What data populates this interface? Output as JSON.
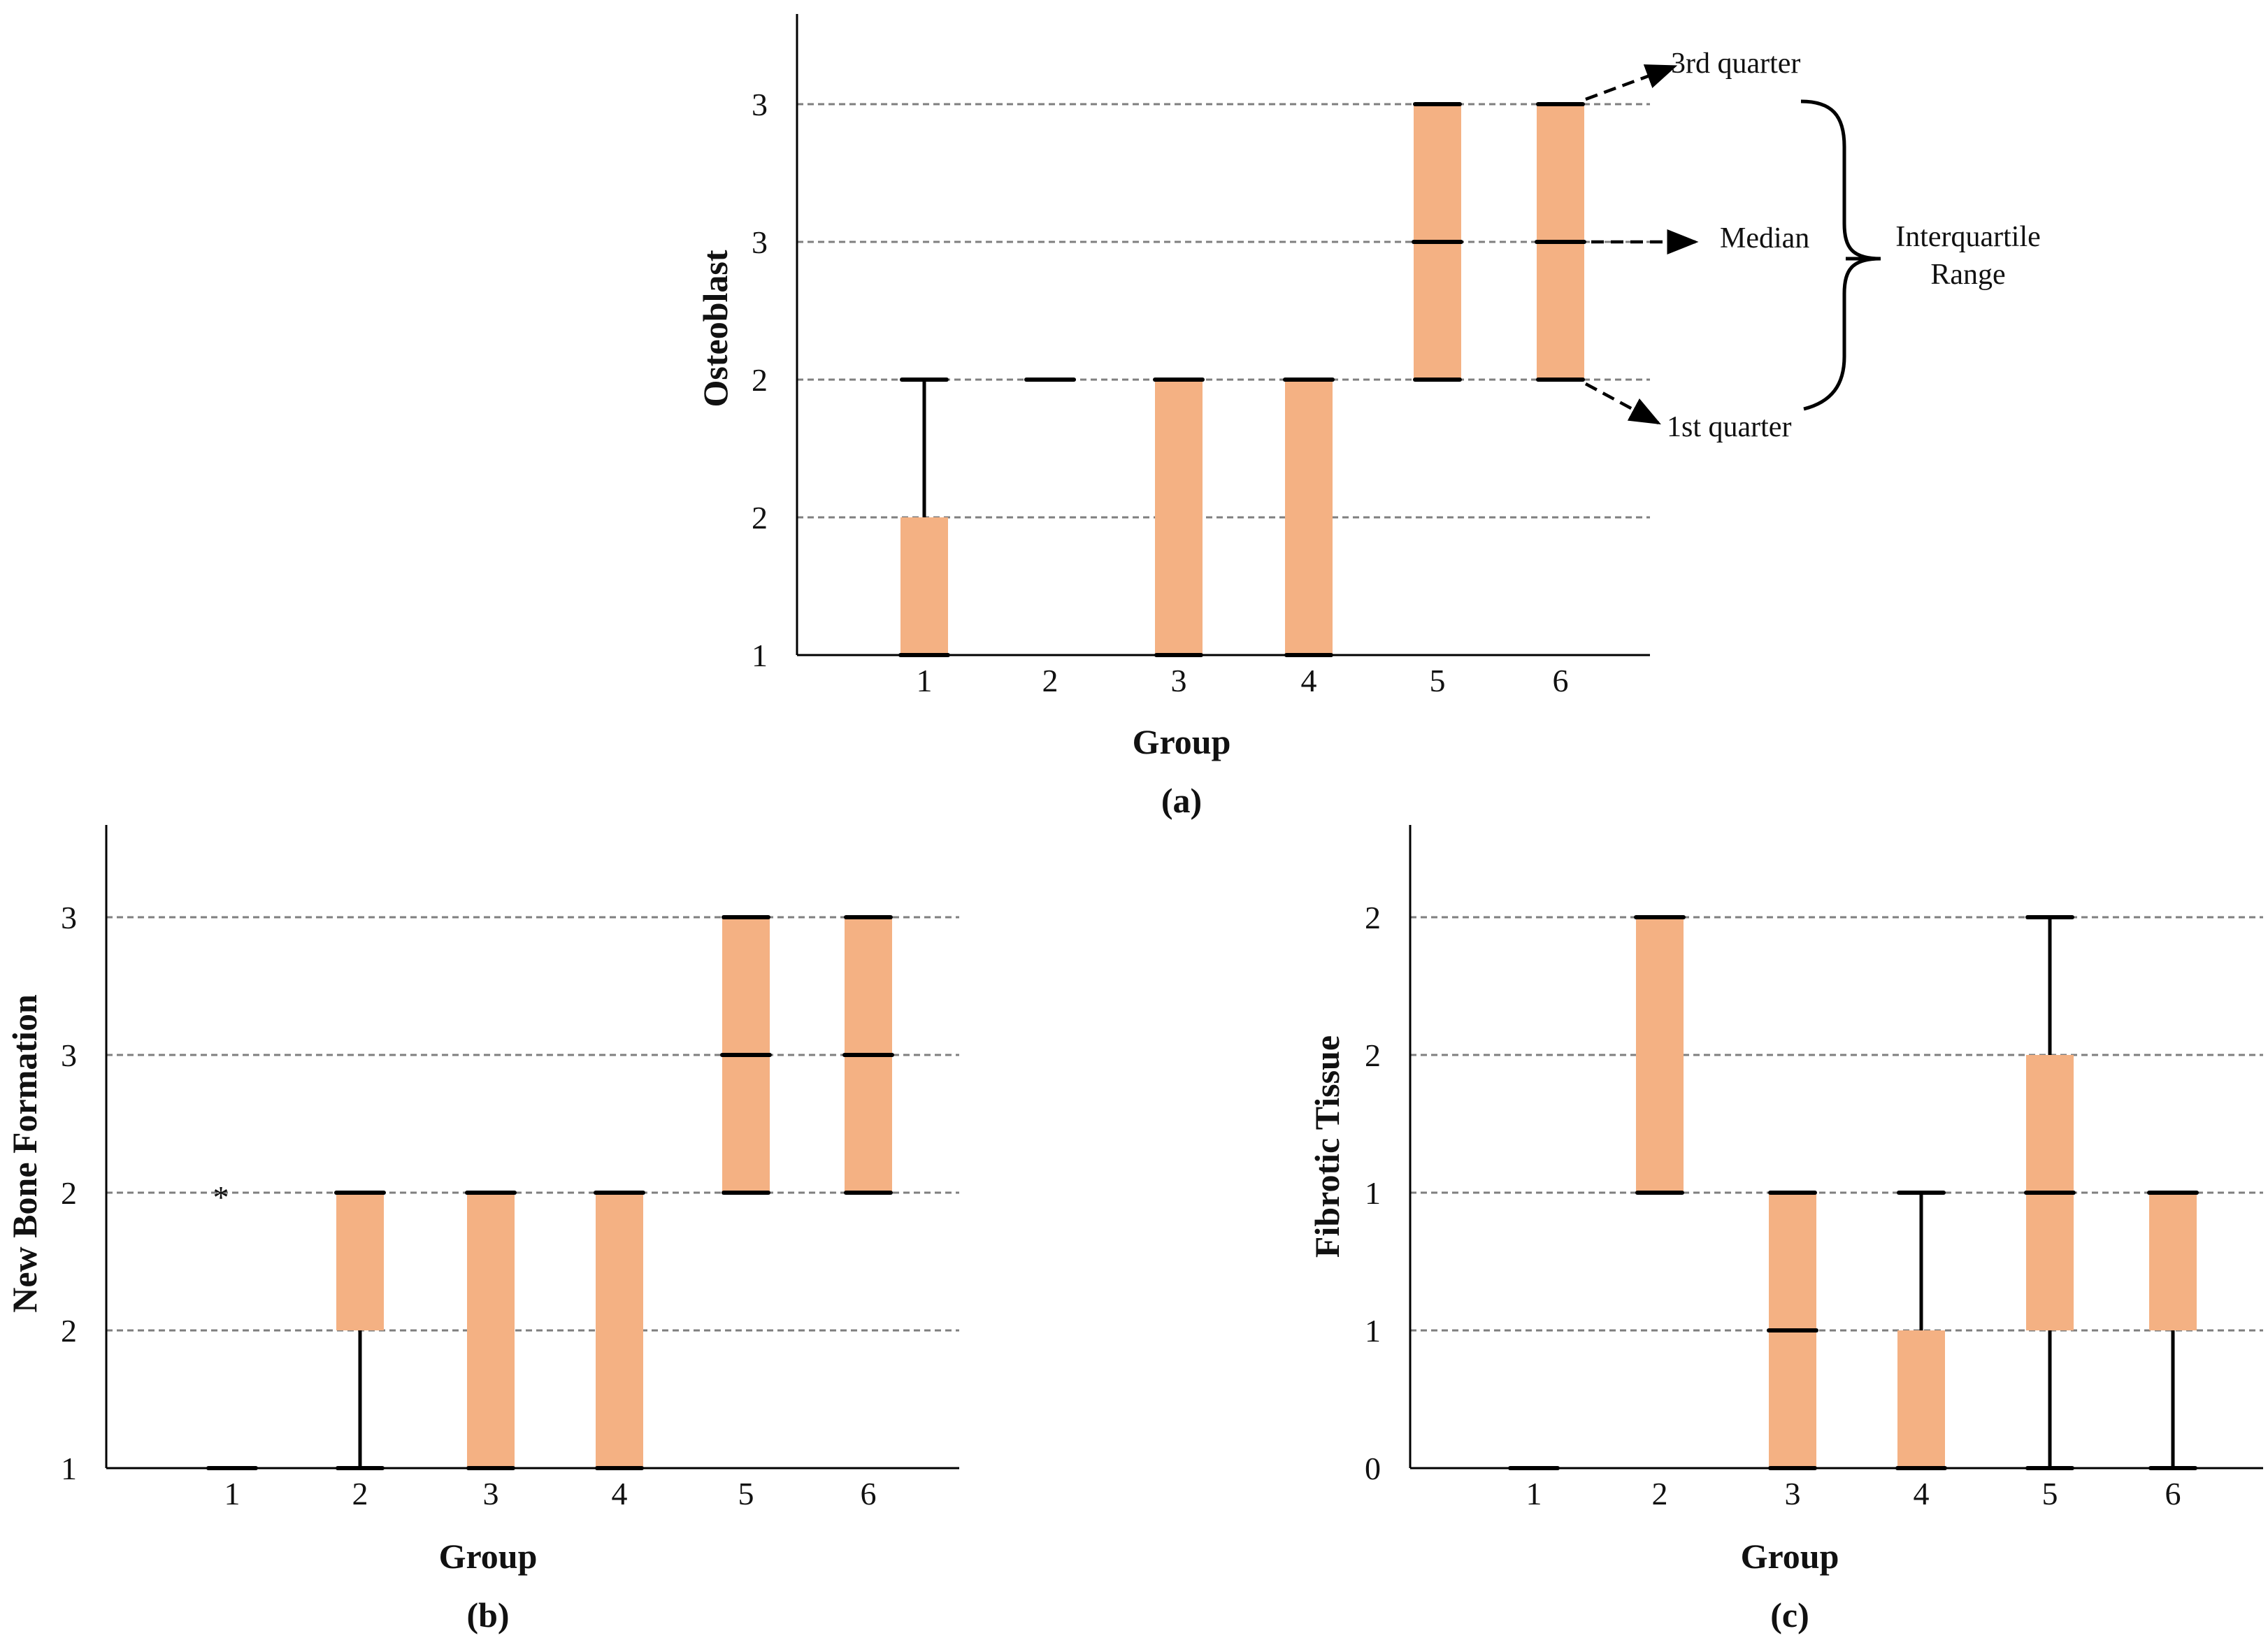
{
  "colors": {
    "box_fill": "#f4b183",
    "line": "#000000",
    "grid": "#7f7f7f"
  },
  "annotations": {
    "third_quarter": "3rd quarter",
    "median": "Median",
    "first_quarter": "1st quarter",
    "iqr_line1": "Interquartile",
    "iqr_line2": "Range"
  },
  "chart_data": [
    {
      "type": "box",
      "panel": "(a)",
      "xlabel": "Group",
      "ylabel": "Osteoblast",
      "categories": [
        "1",
        "2",
        "3",
        "4",
        "5",
        "6"
      ],
      "ytick_labels": [
        "1",
        "2",
        "2",
        "3",
        "3"
      ],
      "ylim": [
        1,
        3
      ],
      "grid": "dashed horizontal",
      "boxes": [
        {
          "group": "1",
          "whisker_low": 1,
          "q1": 1,
          "median": 1,
          "q3": 1.5,
          "whisker_high": 2,
          "outlier": null
        },
        {
          "group": "2",
          "whisker_low": 2,
          "q1": 2,
          "median": 2,
          "q3": 2,
          "whisker_high": 2,
          "outlier": null
        },
        {
          "group": "3",
          "whisker_low": 1,
          "q1": 1,
          "median": 2,
          "q3": 2,
          "whisker_high": 2,
          "outlier": null
        },
        {
          "group": "4",
          "whisker_low": 1,
          "q1": 1,
          "median": 2,
          "q3": 2,
          "whisker_high": 2,
          "outlier": null
        },
        {
          "group": "5",
          "whisker_low": 2,
          "q1": 2,
          "median": 2.5,
          "q3": 3,
          "whisker_high": 3,
          "outlier": null
        },
        {
          "group": "6",
          "whisker_low": 2,
          "q1": 2,
          "median": 2.5,
          "q3": 3,
          "whisker_high": 3,
          "outlier": null
        }
      ]
    },
    {
      "type": "box",
      "panel": "(b)",
      "xlabel": "Group",
      "ylabel": "New Bone Formation",
      "categories": [
        "1",
        "2",
        "3",
        "4",
        "5",
        "6"
      ],
      "ytick_labels": [
        "1",
        "2",
        "2",
        "3",
        "3"
      ],
      "ylim": [
        1,
        3
      ],
      "grid": "dashed horizontal",
      "boxes": [
        {
          "group": "1",
          "whisker_low": 1,
          "q1": 1,
          "median": 1,
          "q3": 1,
          "whisker_high": 1,
          "outlier": 2
        },
        {
          "group": "2",
          "whisker_low": 1,
          "q1": 1.5,
          "median": 2,
          "q3": 2,
          "whisker_high": 2,
          "outlier": null
        },
        {
          "group": "3",
          "whisker_low": 1,
          "q1": 1,
          "median": 2,
          "q3": 2,
          "whisker_high": 2,
          "outlier": null
        },
        {
          "group": "4",
          "whisker_low": 1,
          "q1": 1,
          "median": 2,
          "q3": 2,
          "whisker_high": 2,
          "outlier": null
        },
        {
          "group": "5",
          "whisker_low": 2,
          "q1": 2,
          "median": 2.5,
          "q3": 3,
          "whisker_high": 3,
          "outlier": null
        },
        {
          "group": "6",
          "whisker_low": 2,
          "q1": 2,
          "median": 2.5,
          "q3": 3,
          "whisker_high": 3,
          "outlier": null
        }
      ]
    },
    {
      "type": "box",
      "panel": "(c)",
      "xlabel": "Group",
      "ylabel": "Fibrotic Tissue",
      "categories": [
        "1",
        "2",
        "3",
        "4",
        "5",
        "6"
      ],
      "ytick_labels": [
        "0",
        "1",
        "1",
        "2",
        "2"
      ],
      "ylim": [
        0,
        2
      ],
      "grid": "dashed horizontal",
      "boxes": [
        {
          "group": "1",
          "whisker_low": 0,
          "q1": 0,
          "median": 0,
          "q3": 0,
          "whisker_high": 0,
          "outlier": null
        },
        {
          "group": "2",
          "whisker_low": 1,
          "q1": 1,
          "median": 2,
          "q3": 2,
          "whisker_high": 2,
          "outlier": null
        },
        {
          "group": "3",
          "whisker_low": 0,
          "q1": 0,
          "median": 0.5,
          "q3": 1,
          "whisker_high": 1,
          "outlier": null
        },
        {
          "group": "4",
          "whisker_low": 0,
          "q1": 0,
          "median": 0,
          "q3": 0.5,
          "whisker_high": 1,
          "outlier": null
        },
        {
          "group": "5",
          "whisker_low": 0,
          "q1": 0.5,
          "median": 1,
          "q3": 1.5,
          "whisker_high": 2,
          "outlier": null
        },
        {
          "group": "6",
          "whisker_low": 0,
          "q1": 0.5,
          "median": 1,
          "q3": 1,
          "whisker_high": 1,
          "outlier": null
        }
      ]
    }
  ]
}
